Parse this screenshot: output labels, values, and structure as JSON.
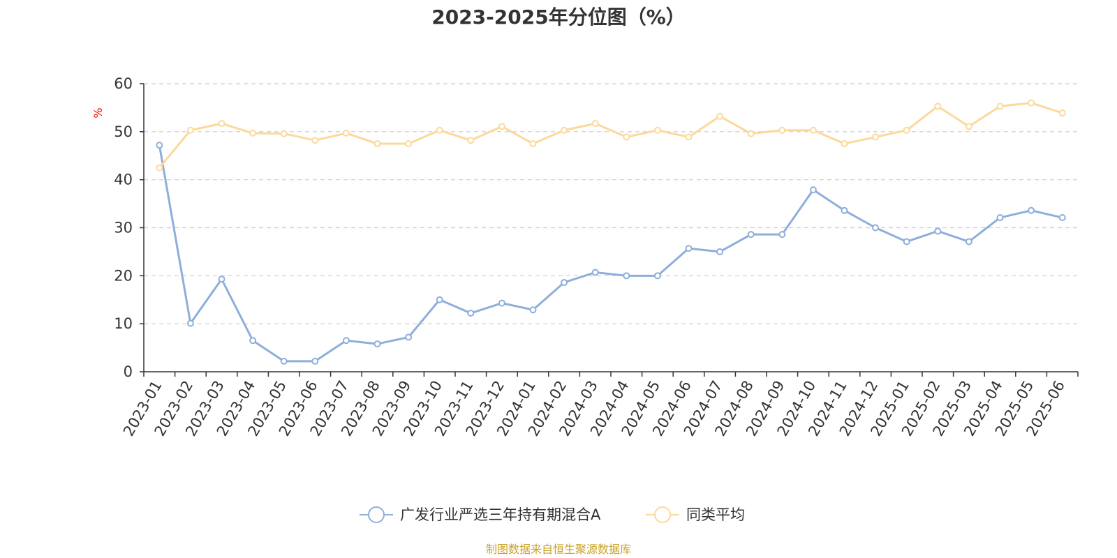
{
  "chart_data": {
    "type": "line",
    "title": "2023-2025年分位图（%）",
    "ylabel": "%",
    "xlabel": "",
    "ylim": [
      0,
      60
    ],
    "yticks": [
      0,
      10,
      20,
      30,
      40,
      50,
      60
    ],
    "grid": true,
    "legend_position": "bottom",
    "categories": [
      "2023-01",
      "2023-02",
      "2023-03",
      "2023-04",
      "2023-05",
      "2023-06",
      "2023-07",
      "2023-08",
      "2023-09",
      "2023-10",
      "2023-11",
      "2023-12",
      "2024-01",
      "2024-02",
      "2024-03",
      "2024-04",
      "2024-05",
      "2024-06",
      "2024-07",
      "2024-08",
      "2024-09",
      "2024-10",
      "2024-11",
      "2024-12",
      "2025-01",
      "2025-02",
      "2025-03",
      "2025-04",
      "2025-05",
      "2025-06"
    ],
    "series": [
      {
        "name": "广发行业严选三年持有期混合A",
        "color": "#8eaedb",
        "values": [
          47.2,
          10.1,
          19.3,
          6.5,
          2.2,
          2.2,
          6.5,
          5.8,
          7.2,
          15.0,
          12.2,
          14.3,
          12.9,
          18.6,
          20.7,
          20.0,
          20.0,
          25.7,
          25.0,
          28.6,
          28.6,
          37.9,
          33.6,
          30.0,
          27.1,
          29.3,
          27.1,
          32.1,
          33.6,
          32.1
        ]
      },
      {
        "name": "同类平均",
        "color": "#fbd99b",
        "values": [
          42.5,
          50.3,
          51.7,
          49.7,
          49.6,
          48.2,
          49.7,
          47.5,
          47.5,
          50.3,
          48.2,
          51.1,
          47.5,
          50.3,
          51.7,
          48.9,
          50.3,
          48.9,
          53.2,
          49.6,
          50.3,
          50.3,
          47.5,
          48.9,
          50.3,
          55.3,
          51.1,
          55.3,
          56.0,
          53.9
        ]
      }
    ]
  },
  "footer": {
    "source": "制图数据来自恒生聚源数据库"
  }
}
